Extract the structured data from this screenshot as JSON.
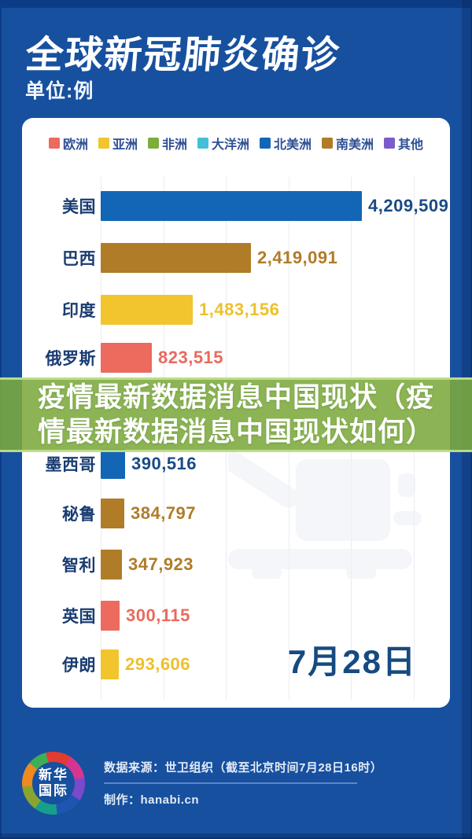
{
  "page": {
    "title": "全球新冠肺炎确诊",
    "unit_label": "单位:例",
    "date_label": "7月28日"
  },
  "overlay": {
    "lines": [
      "疫情最新数据消息中国现状（疫",
      "情最新数据消息中国现状如何）"
    ]
  },
  "chart_data": {
    "type": "bar",
    "orientation": "horizontal",
    "title": "全球新冠肺炎确诊",
    "unit": "例",
    "as_of_date": "7月28日",
    "legend_position": "top",
    "grid": true,
    "xlim": [
      0,
      4209509
    ],
    "categories": [
      "美国",
      "巴西",
      "印度",
      "俄罗斯",
      "墨西哥",
      "秘鲁",
      "智利",
      "英国",
      "伊朗"
    ],
    "values": [
      4209509,
      2419091,
      1483156,
      823515,
      390516,
      384797,
      347923,
      300115,
      293606
    ],
    "value_labels": [
      "4,209,509",
      "2,419,091",
      "1,483,156",
      "823,515",
      "390,516",
      "384,797",
      "347,923",
      "300,115",
      "293,606"
    ],
    "continents": [
      "北美洲",
      "南美洲",
      "亚洲",
      "欧洲",
      "北美洲",
      "南美洲",
      "南美洲",
      "欧洲",
      "亚洲"
    ],
    "legend": [
      {
        "label": "欧洲",
        "color": "#ec6a5e"
      },
      {
        "label": "亚洲",
        "color": "#f2c42d"
      },
      {
        "label": "非洲",
        "color": "#7cad3e"
      },
      {
        "label": "大洋洲",
        "color": "#43c0d5"
      },
      {
        "label": "北美洲",
        "color": "#1266b5"
      },
      {
        "label": "南美洲",
        "color": "#b07c28"
      },
      {
        "label": "其他",
        "color": "#7a5ccb"
      }
    ],
    "colors_by_continent": {
      "欧洲": "#ec6a5e",
      "亚洲": "#f2c42d",
      "非洲": "#7cad3e",
      "大洋洲": "#43c0d5",
      "北美洲": "#1266b5",
      "南美洲": "#b07c28",
      "其他": "#7a5ccb"
    },
    "value_text_colors": [
      "#1a4a85",
      "#b07c28",
      "#eec02a",
      "#e96a5e",
      "#1a4a85",
      "#b07c28",
      "#b07c28",
      "#e96a5e",
      "#eec02a"
    ]
  },
  "footer": {
    "logo_line1": "新华",
    "logo_line2": "国际",
    "source": "数据来源：世卫组织（截至北京时间7月28日16时）",
    "credit": "制作：hanabi.cn"
  }
}
